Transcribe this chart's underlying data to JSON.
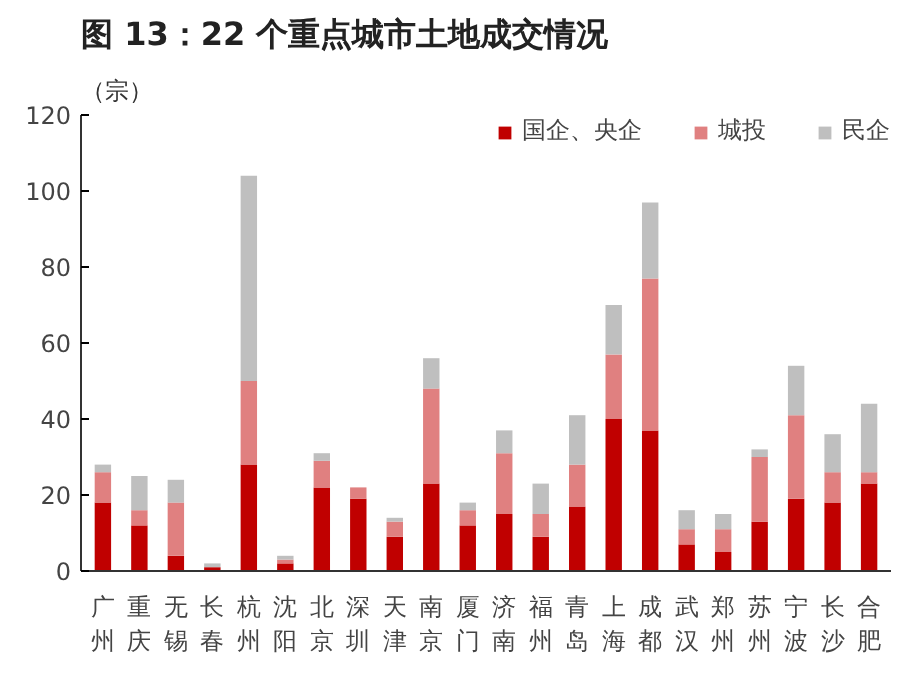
{
  "chart_data": {
    "type": "bar",
    "title": "图 13：22 个重点城市土地成交情况",
    "ylabel": "（宗）",
    "categories": [
      "广州",
      "重庆",
      "无锡",
      "长春",
      "杭州",
      "沈阳",
      "北京",
      "深圳",
      "天津",
      "南京",
      "厦门",
      "济南",
      "福州",
      "青岛",
      "上海",
      "成都",
      "武汉",
      "郑州",
      "苏州",
      "宁波",
      "长沙",
      "合肥"
    ],
    "stacked": true,
    "series": [
      {
        "name": "国企、央企",
        "color": "#c00000",
        "values": [
          18,
          12,
          4,
          1,
          28,
          2,
          22,
          19,
          9,
          23,
          12,
          15,
          9,
          17,
          40,
          37,
          7,
          5,
          13,
          19,
          18,
          23
        ]
      },
      {
        "name": "城投",
        "color": "#e08080",
        "values": [
          8,
          4,
          14,
          0,
          22,
          1,
          7,
          3,
          4,
          25,
          4,
          16,
          6,
          11,
          17,
          40,
          4,
          6,
          17,
          22,
          8,
          3
        ]
      },
      {
        "name": "民企",
        "color": "#bfbfbf",
        "values": [
          2,
          9,
          6,
          1,
          54,
          1,
          2,
          0,
          1,
          8,
          2,
          6,
          8,
          13,
          13,
          20,
          5,
          4,
          2,
          13,
          10,
          18
        ]
      }
    ],
    "ylim": [
      0,
      120
    ],
    "yticks": [
      0,
      20,
      40,
      60,
      80,
      100,
      120
    ],
    "grid": false,
    "legend": "top right"
  }
}
